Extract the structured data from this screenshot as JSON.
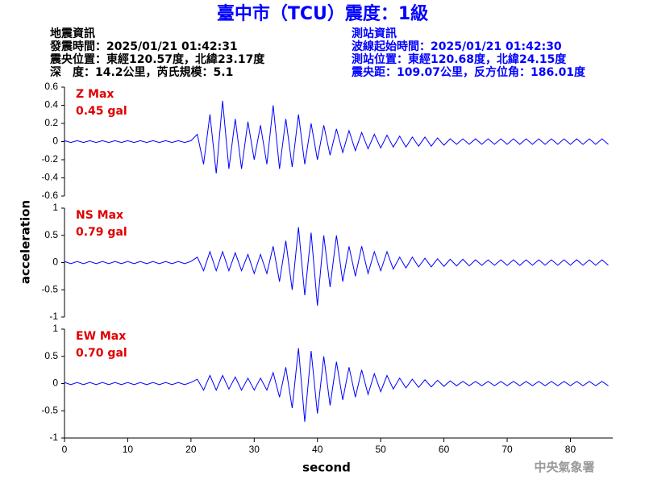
{
  "header": {
    "title": "臺中市（TCU）震度：1級",
    "left": [
      "地震資訊",
      "發震時間：2025/01/21 01:42:31",
      "震央位置：東經120.57度，北緯23.17度",
      "深　度：14.2公里，芮氏規模：5.1"
    ],
    "right": [
      "測站資訊",
      "波線起始時間：2025/01/21 01:42:30",
      "測站位置：東經120.68度，北緯24.15度",
      "震央距：109.07公里，反方位角：186.01度"
    ],
    "watermark": "中央氣象署"
  },
  "chart_data": {
    "type": "line",
    "xlabel": "second",
    "ylabel": "acceleration",
    "xlim": [
      0,
      86.7
    ],
    "xticks": [
      0,
      10,
      20,
      30,
      40,
      50,
      60,
      70,
      80
    ],
    "x": [
      0,
      1,
      2,
      3,
      4,
      5,
      6,
      7,
      8,
      9,
      10,
      11,
      12,
      13,
      14,
      15,
      16,
      17,
      18,
      19,
      20,
      21,
      22,
      23,
      24,
      25,
      26,
      27,
      28,
      29,
      30,
      31,
      32,
      33,
      34,
      35,
      36,
      37,
      38,
      39,
      40,
      41,
      42,
      43,
      44,
      45,
      46,
      47,
      48,
      49,
      50,
      51,
      52,
      53,
      54,
      55,
      56,
      57,
      58,
      59,
      60,
      61,
      62,
      63,
      64,
      65,
      66,
      67,
      68,
      69,
      70,
      71,
      72,
      73,
      74,
      75,
      76,
      77,
      78,
      79,
      80,
      81,
      82,
      83,
      84,
      85,
      86
    ],
    "panels": [
      {
        "label": "Z Max",
        "max_label": "0.45 gal",
        "color": "#0000ff",
        "ylim": [
          -0.6,
          0.6
        ],
        "yticks": [
          0.6,
          0.4,
          0.2,
          0,
          -0.2,
          -0.4,
          -0.6
        ],
        "values": [
          0.01,
          -0.01,
          0.01,
          -0.01,
          0.01,
          -0.01,
          0.01,
          -0.01,
          0.01,
          -0.01,
          0.01,
          -0.01,
          0.01,
          -0.01,
          0.01,
          -0.01,
          0.01,
          -0.01,
          0.01,
          -0.01,
          0.01,
          0.08,
          -0.25,
          0.3,
          -0.35,
          0.45,
          -0.3,
          0.25,
          -0.3,
          0.22,
          -0.2,
          0.18,
          -0.25,
          0.4,
          -0.3,
          0.25,
          -0.28,
          0.3,
          -0.25,
          0.2,
          -0.2,
          0.18,
          -0.15,
          0.14,
          -0.12,
          0.12,
          -0.1,
          0.1,
          -0.08,
          0.08,
          -0.07,
          0.07,
          -0.06,
          0.06,
          -0.06,
          0.05,
          -0.05,
          0.05,
          -0.05,
          0.04,
          -0.04,
          0.03,
          -0.03,
          0.03,
          -0.03,
          0.03,
          -0.03,
          0.03,
          -0.03,
          0.03,
          -0.03,
          0.03,
          -0.03,
          0.03,
          -0.03,
          0.03,
          -0.03,
          0.03,
          -0.03,
          0.03,
          -0.03,
          0.03,
          -0.03,
          0.03,
          -0.03,
          0.03,
          -0.03
        ]
      },
      {
        "label": "NS Max",
        "max_label": "0.79 gal",
        "color": "#0000ff",
        "ylim": [
          -1,
          1
        ],
        "yticks": [
          1,
          0.5,
          0,
          -0.5,
          -1
        ],
        "values": [
          0.02,
          -0.02,
          0.02,
          -0.02,
          0.02,
          -0.02,
          0.02,
          -0.02,
          0.02,
          -0.02,
          0.02,
          -0.02,
          0.02,
          -0.02,
          0.02,
          -0.02,
          0.02,
          -0.02,
          0.02,
          -0.02,
          0.02,
          0.1,
          -0.15,
          0.2,
          -0.15,
          0.2,
          -0.15,
          0.18,
          -0.15,
          0.15,
          -0.2,
          0.15,
          -0.2,
          0.3,
          -0.35,
          0.4,
          -0.5,
          0.65,
          -0.6,
          0.55,
          -0.79,
          0.5,
          -0.45,
          0.5,
          -0.35,
          0.3,
          -0.25,
          0.3,
          -0.2,
          0.2,
          -0.15,
          0.2,
          -0.12,
          0.1,
          -0.1,
          0.1,
          -0.08,
          0.08,
          -0.08,
          0.07,
          -0.07,
          0.06,
          -0.06,
          0.06,
          -0.06,
          0.05,
          -0.05,
          0.05,
          -0.05,
          0.05,
          -0.05,
          0.05,
          -0.05,
          0.05,
          -0.05,
          0.05,
          -0.05,
          0.05,
          -0.05,
          0.05,
          -0.05,
          0.05,
          -0.05,
          0.05,
          -0.05,
          0.05,
          -0.05
        ]
      },
      {
        "label": "EW Max",
        "max_label": "0.70 gal",
        "color": "#0000ff",
        "ylim": [
          -1,
          1
        ],
        "yticks": [
          1,
          0.5,
          0,
          -0.5,
          -1
        ],
        "values": [
          0.02,
          -0.02,
          0.02,
          -0.02,
          0.02,
          -0.02,
          0.02,
          -0.02,
          0.02,
          -0.02,
          0.02,
          -0.02,
          0.02,
          -0.02,
          0.02,
          -0.02,
          0.02,
          -0.02,
          0.02,
          -0.02,
          0.02,
          0.08,
          -0.12,
          0.15,
          -0.12,
          0.15,
          -0.1,
          0.12,
          -0.12,
          0.1,
          -0.12,
          0.1,
          -0.12,
          0.2,
          -0.25,
          0.3,
          -0.45,
          0.65,
          -0.7,
          0.6,
          -0.55,
          0.5,
          -0.4,
          0.4,
          -0.3,
          0.3,
          -0.25,
          0.25,
          -0.2,
          0.18,
          -0.15,
          0.15,
          -0.1,
          0.1,
          -0.08,
          0.08,
          -0.07,
          0.07,
          -0.06,
          0.06,
          -0.05,
          0.05,
          -0.04,
          0.04,
          -0.04,
          0.04,
          -0.04,
          0.04,
          -0.04,
          0.04,
          -0.04,
          0.04,
          -0.04,
          0.04,
          -0.04,
          0.04,
          -0.04,
          0.04,
          -0.04,
          0.04,
          -0.04,
          0.04,
          -0.04,
          0.04,
          -0.04,
          0.04,
          -0.04
        ]
      }
    ]
  }
}
